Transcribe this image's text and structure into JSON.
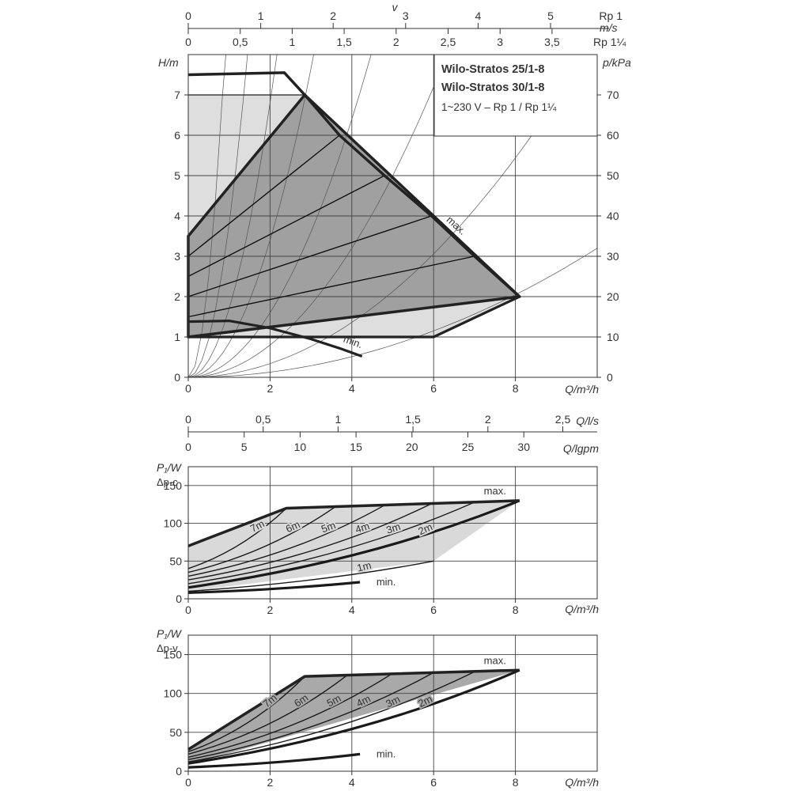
{
  "title": {
    "line1": "Wilo-Stratos 25/1-8",
    "line2": "Wilo-Stratos 30/1-8",
    "line3": "1~230 V – Rp 1 / Rp 1¼"
  },
  "top_scales": {
    "v_symbol": "v",
    "rp1_label": "Rp 1",
    "ms_label": "m/s",
    "rp114_label": "Rp 1¼",
    "rp1_ticks": [
      "0",
      "1",
      "2",
      "3",
      "4",
      "5"
    ],
    "rp114_ticks": [
      "0",
      "0,5",
      "1",
      "1,5",
      "2",
      "2,5",
      "3",
      "3,5"
    ]
  },
  "middle_scales": {
    "ls_label": "Q/l/s",
    "lgpm_label": "Q/lgpm",
    "ls_ticks": [
      "0",
      "0,5",
      "1",
      "1,5",
      "2",
      "2,5"
    ],
    "lgpm_ticks": [
      "0",
      "5",
      "10",
      "15",
      "20",
      "25",
      "30"
    ]
  },
  "axes": {
    "h_label": "H/m",
    "p_label": "p/kPa",
    "q_label": "Q/m³/h",
    "p1_label": "P₁/W",
    "dpc_label": "Δp-c",
    "dpv_label": "Δp-v",
    "q_ticks": [
      "0",
      "2",
      "4",
      "6",
      "8"
    ],
    "h_ticks": [
      "0",
      "1",
      "2",
      "3",
      "4",
      "5",
      "6",
      "7"
    ],
    "p_ticks": [
      "0",
      "10",
      "20",
      "30",
      "40",
      "50",
      "60",
      "70"
    ],
    "w_ticks": [
      "0",
      "50",
      "100",
      "150"
    ]
  },
  "chart_data": [
    {
      "type": "line",
      "chart": "pump-curve",
      "xlabel": "Q/m³/h",
      "ylabel": "H/m",
      "ylabel_right": "p/kPa",
      "xlim": [
        0,
        10
      ],
      "ylim": [
        0,
        8
      ],
      "y2lim": [
        0,
        80
      ],
      "grid": true,
      "labels": {
        "max": "max.",
        "min": "min."
      },
      "series": [
        {
          "name": "max.",
          "x": [
            0,
            2.35,
            2.85,
            3.7,
            4.8,
            5.95,
            7.0,
            8.1
          ],
          "y": [
            7.5,
            7.55,
            7.0,
            6.0,
            5.0,
            4.0,
            3.0,
            2.0
          ]
        },
        {
          "name": "min.",
          "x": [
            0,
            1.0,
            2.0,
            3.0,
            3.7,
            4.25
          ],
          "y": [
            1.38,
            1.4,
            1.22,
            0.95,
            0.72,
            0.52
          ]
        }
      ],
      "dp_v_region": {
        "x": [
          0,
          2.85,
          8.1,
          0
        ],
        "y": [
          3.5,
          7.0,
          2.0,
          1.0
        ]
      },
      "dp_c_region": {
        "x": [
          0,
          2.85,
          2.85,
          8.1,
          6.0,
          0
        ],
        "y": [
          7.0,
          7.0,
          7.0,
          2.0,
          1.0,
          1.0
        ]
      },
      "dp_v_setpoints": [
        {
          "x0": 0,
          "y0": 3.0,
          "x1": 3.7,
          "y1": 6.0
        },
        {
          "x0": 0,
          "y0": 2.5,
          "x1": 4.8,
          "y1": 5.0
        },
        {
          "x0": 0,
          "y0": 2.0,
          "x1": 5.95,
          "y1": 4.0
        },
        {
          "x0": 0,
          "y0": 1.5,
          "x1": 7.0,
          "y1": 3.0
        }
      ],
      "system_curve_k": [
        10.0,
        3.8,
        1.7,
        0.85,
        0.4,
        0.2,
        0.085,
        0.032
      ]
    },
    {
      "type": "line",
      "chart": "power-dp-c",
      "xlabel": "Q/m³/h",
      "ylabel": "P₁/W Δp-c",
      "xlim": [
        0,
        10
      ],
      "ylim": [
        0,
        175
      ],
      "grid": true,
      "labels": {
        "max": "max.",
        "min": "min."
      },
      "series": [
        {
          "name": "7m",
          "x": [
            0,
            2.4
          ],
          "y": [
            40,
            120
          ]
        },
        {
          "name": "6m",
          "x": [
            0,
            3.6
          ],
          "y": [
            35,
            122
          ]
        },
        {
          "name": "5m",
          "x": [
            0,
            4.8
          ],
          "y": [
            30,
            124
          ]
        },
        {
          "name": "4m",
          "x": [
            0,
            5.95
          ],
          "y": [
            25,
            126
          ]
        },
        {
          "name": "3m",
          "x": [
            0,
            7.0
          ],
          "y": [
            20,
            128
          ]
        },
        {
          "name": "2m",
          "x": [
            0,
            8.1
          ],
          "y": [
            15,
            130
          ]
        },
        {
          "name": "1m",
          "x": [
            0,
            6.0
          ],
          "y": [
            10,
            50
          ]
        },
        {
          "name": "min.",
          "x": [
            0,
            4.2
          ],
          "y": [
            8,
            22
          ]
        }
      ],
      "envelope": {
        "x": [
          0,
          2.4,
          8.1,
          6.0,
          0
        ],
        "y": [
          70,
          120,
          130,
          50,
          10
        ]
      },
      "series_labels": [
        "7m",
        "6m",
        "5m",
        "4m",
        "3m",
        "2m",
        "1m"
      ]
    },
    {
      "type": "line",
      "chart": "power-dp-v",
      "xlabel": "Q/m³/h",
      "ylabel": "P₁/W Δp-v",
      "xlim": [
        0,
        10
      ],
      "ylim": [
        0,
        175
      ],
      "grid": true,
      "labels": {
        "max": "max.",
        "min": "min."
      },
      "series": [
        {
          "name": "7m",
          "x": [
            0,
            2.85
          ],
          "y": [
            25,
            122
          ]
        },
        {
          "name": "6m",
          "x": [
            0,
            3.9
          ],
          "y": [
            22,
            124
          ]
        },
        {
          "name": "5m",
          "x": [
            0,
            5.0
          ],
          "y": [
            18,
            126
          ]
        },
        {
          "name": "4m",
          "x": [
            0,
            6.0
          ],
          "y": [
            15,
            127
          ]
        },
        {
          "name": "3m",
          "x": [
            0,
            7.0
          ],
          "y": [
            12,
            128
          ]
        },
        {
          "name": "2m",
          "x": [
            0,
            8.1
          ],
          "y": [
            10,
            130
          ]
        },
        {
          "name": "min.",
          "x": [
            0,
            4.2
          ],
          "y": [
            5,
            22
          ]
        }
      ],
      "envelope": {
        "x": [
          0,
          2.85,
          8.1,
          0
        ],
        "y": [
          28,
          122,
          130,
          8
        ]
      },
      "series_labels": [
        "7m",
        "6m",
        "5m",
        "4m",
        "3m",
        "2m"
      ]
    }
  ]
}
